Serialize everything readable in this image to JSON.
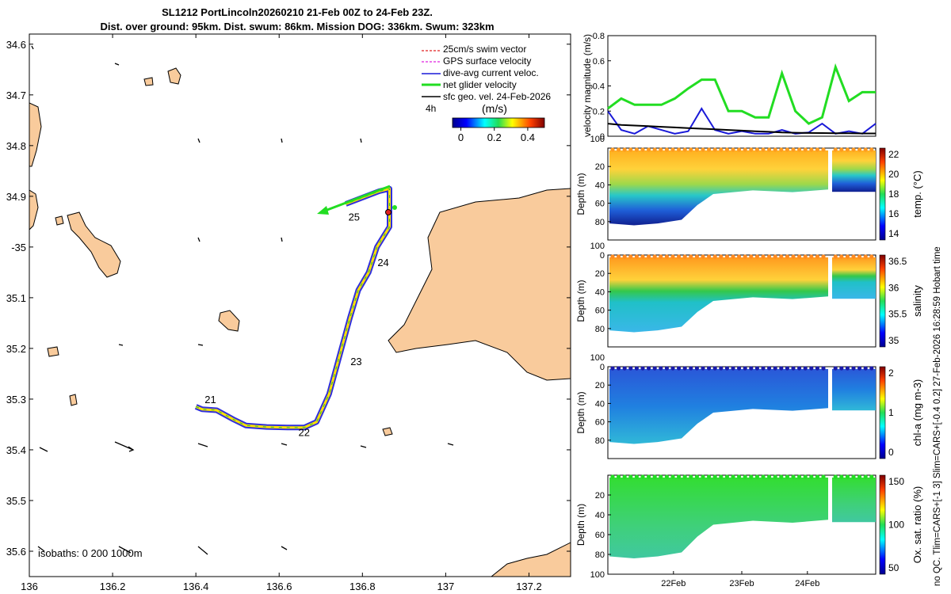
{
  "title_line1": "SL1212 PortLincoln20260210 21-Feb 00Z to 24-Feb 23Z.",
  "title_line2": "Dist. over ground: 95km. Dist. swum: 86km. Mission DOG: 336km. Swum: 323km",
  "side_note": "no QC. Tlim=CARS+[-1 3] Slim=CARS+[-0.4 0.2] 27-Feb-2026 16:28:59 Hobart time",
  "colors": {
    "land": "#f9cb9c",
    "swim": "#e02020",
    "gps": "#e020e0",
    "current": "#1a1ad8",
    "net": "#22dd22",
    "geo": "#000000"
  },
  "chart_data": [
    {
      "type": "map",
      "name": "track-map",
      "xlim": [
        136,
        137.3
      ],
      "ylim": [
        -35.65,
        -34.58
      ],
      "x_ticks": [
        136,
        136.2,
        136.4,
        136.6,
        136.8,
        137,
        137.2
      ],
      "x_tick_labels": [
        "136",
        "136.2",
        "136.4",
        "136.6",
        "136.8",
        "137",
        "137.2"
      ],
      "y_ticks": [
        -34.6,
        -34.7,
        -34.8,
        -34.9,
        -35,
        -35.1,
        -35.2,
        -35.3,
        -35.4,
        -35.5,
        -35.6
      ],
      "y_tick_labels": [
        "34.6",
        "34.7",
        "34.8",
        "34.9",
        "-35",
        "35.1",
        "35.2",
        "35.3",
        "35.4",
        "35.5",
        "35.6"
      ],
      "track": [
        [
          136.4,
          -35.315
        ],
        [
          136.415,
          -35.32
        ],
        [
          136.45,
          -35.322
        ],
        [
          136.49,
          -35.34
        ],
        [
          136.52,
          -35.352
        ],
        [
          136.57,
          -35.355
        ],
        [
          136.62,
          -35.356
        ],
        [
          136.66,
          -35.356
        ],
        [
          136.69,
          -35.345
        ],
        [
          136.72,
          -35.29
        ],
        [
          136.75,
          -35.2
        ],
        [
          136.77,
          -35.14
        ],
        [
          136.79,
          -35.085
        ],
        [
          136.815,
          -35.05
        ],
        [
          136.835,
          -35.0
        ],
        [
          136.865,
          -34.96
        ],
        [
          136.865,
          -34.885
        ],
        [
          136.84,
          -34.89
        ],
        [
          136.76,
          -34.915
        ]
      ],
      "day_labels": [
        {
          "label": "21",
          "lon": 136.435,
          "lat": -35.3
        },
        {
          "label": "22",
          "lon": 136.66,
          "lat": -35.365
        },
        {
          "label": "23",
          "lon": 136.785,
          "lat": -35.225
        },
        {
          "label": "24",
          "lon": 136.85,
          "lat": -35.03
        },
        {
          "label": "25",
          "lon": 136.78,
          "lat": -34.94
        }
      ],
      "legend": [
        "25cm/s swim vector",
        "GPS surface velocity",
        "dive-avg current veloc.",
        "net glider velocity",
        "sfc geo. vel. 24-Feb-2026"
      ],
      "legend_extra": "4h",
      "colorbar": {
        "label": "(m/s)",
        "ticks": [
          "0",
          "0.2",
          "0.4"
        ],
        "range": [
          -0.05,
          0.5
        ]
      },
      "isobaths_label": "isobaths: 0   200  1000m"
    },
    {
      "type": "line",
      "name": "velocity-panel",
      "ylabel": "velocity magnitude (m/s)",
      "ylim": [
        0,
        0.8
      ],
      "y_ticks": [
        "0",
        "0.2",
        "0.4",
        "0.6",
        "0.8"
      ],
      "x": [
        0,
        0.05,
        0.1,
        0.15,
        0.2,
        0.25,
        0.3,
        0.35,
        0.4,
        0.45,
        0.5,
        0.55,
        0.6,
        0.65,
        0.7,
        0.75,
        0.8,
        0.85,
        0.9,
        0.95,
        1.0
      ],
      "series": [
        {
          "name": "net glider velocity",
          "values": [
            0.22,
            0.3,
            0.25,
            0.25,
            0.25,
            0.3,
            0.38,
            0.45,
            0.45,
            0.2,
            0.2,
            0.15,
            0.15,
            0.5,
            0.2,
            0.1,
            0.15,
            0.55,
            0.28,
            0.35,
            0.35
          ]
        },
        {
          "name": "dive-avg current",
          "values": [
            0.2,
            0.05,
            0.02,
            0.08,
            0.05,
            0.02,
            0.04,
            0.22,
            0.05,
            0.02,
            0.04,
            0.02,
            0.02,
            0.05,
            0.02,
            0.03,
            0.1,
            0.02,
            0.04,
            0.02,
            0.1
          ]
        },
        {
          "name": "sfc geo",
          "values": [
            0.1,
            0.09,
            0.085,
            0.08,
            0.075,
            0.07,
            0.065,
            0.06,
            0.055,
            0.05,
            0.045,
            0.04,
            0.035,
            0.03,
            0.028,
            0.026,
            0.025,
            0.024,
            0.023,
            0.022,
            0.022
          ]
        }
      ]
    },
    {
      "type": "heatmap",
      "name": "temperature-section",
      "ylabel": "Depth (m)",
      "y_ticks": [
        "20",
        "40",
        "60",
        "80"
      ],
      "top_tick": "100",
      "colorbar_label": "temp. (°C)",
      "colorbar_ticks": [
        "22",
        "20",
        "18",
        "16",
        "14"
      ]
    },
    {
      "type": "heatmap",
      "name": "salinity-section",
      "ylabel": "Depth (m)",
      "y_ticks": [
        "0",
        "20",
        "40",
        "60",
        "80"
      ],
      "top_tick": "100",
      "colorbar_label": "salinity",
      "colorbar_ticks": [
        "36.5",
        "36",
        "35.5",
        "35"
      ]
    },
    {
      "type": "heatmap",
      "name": "chlorophyll-section",
      "ylabel": "Depth (m)",
      "y_ticks": [
        "0",
        "20",
        "40",
        "60",
        "80"
      ],
      "top_tick": "100",
      "colorbar_label": "chl-a (mg m-3)",
      "colorbar_ticks": [
        "2",
        "1",
        "0"
      ]
    },
    {
      "type": "heatmap",
      "name": "oxygen-section",
      "ylabel": "Depth (m)",
      "y_ticks": [
        "20",
        "40",
        "60",
        "80",
        "100"
      ],
      "colorbar_label": "Ox. sat. ratio (%)",
      "colorbar_ticks": [
        "150",
        "100",
        "50"
      ],
      "x_tick_labels": [
        "22Feb",
        "23Feb",
        "24Feb"
      ]
    }
  ]
}
